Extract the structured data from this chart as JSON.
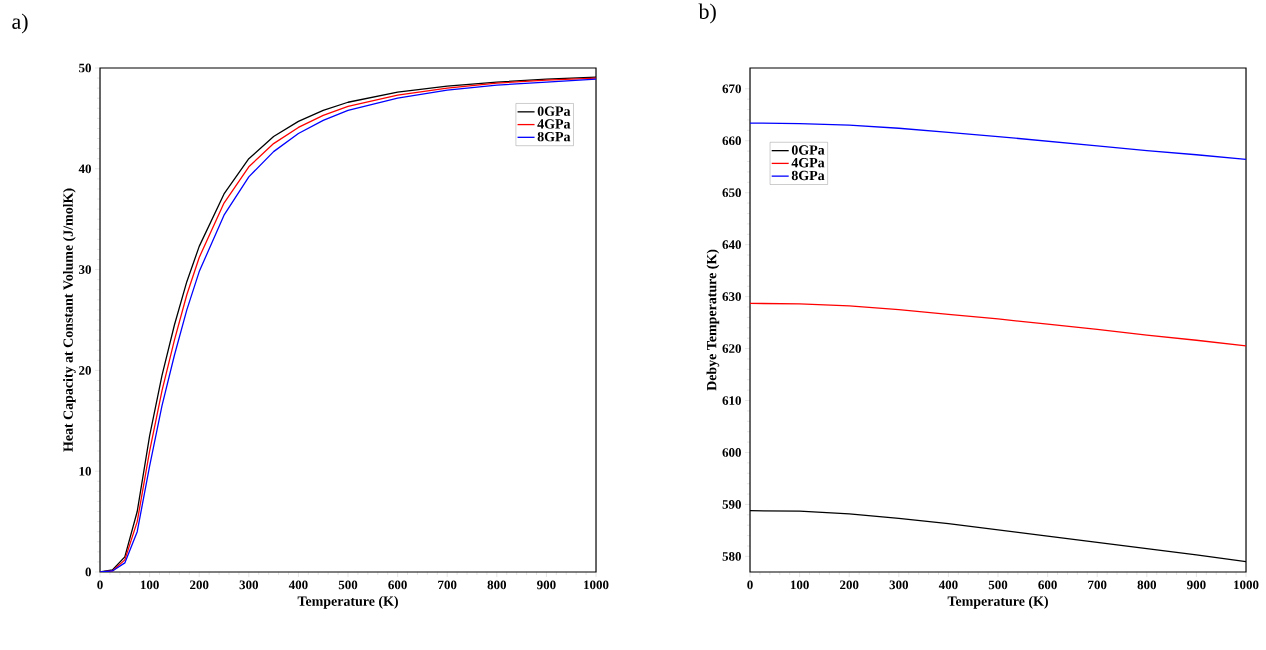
{
  "chart_data": [
    {
      "type": "line",
      "title": "a)",
      "xlabel": "Temperature (K)",
      "ylabel": "Heat Capacity at Constant Volume (J/molK)",
      "x": [
        0,
        25,
        50,
        75,
        100,
        125,
        150,
        175,
        200,
        250,
        300,
        350,
        400,
        450,
        500,
        600,
        700,
        800,
        900,
        1000
      ],
      "xlim": [
        0,
        1000
      ],
      "xticks": [
        0,
        100,
        200,
        300,
        400,
        500,
        600,
        700,
        800,
        900,
        1000
      ],
      "ylim": [
        0,
        50
      ],
      "yticks": [
        0,
        10,
        20,
        30,
        40,
        50
      ],
      "legend": "top right",
      "grid": false,
      "series": [
        {
          "name": "0GPa",
          "color": "#000000",
          "values": [
            0,
            0.2,
            1.5,
            6,
            13.5,
            19.5,
            24.5,
            28.8,
            32.3,
            37.5,
            41,
            43.2,
            44.7,
            45.8,
            46.6,
            47.6,
            48.2,
            48.6,
            48.9,
            49.1
          ]
        },
        {
          "name": "4GPa",
          "color": "#ff0000",
          "values": [
            0,
            0.1,
            1.2,
            5,
            12,
            18,
            23,
            27.5,
            31.2,
            36.6,
            40.2,
            42.5,
            44.1,
            45.3,
            46.2,
            47.3,
            48.0,
            48.5,
            48.8,
            49.0
          ]
        },
        {
          "name": "8GPa",
          "color": "#0000ff",
          "values": [
            0,
            0.1,
            0.9,
            4,
            10.5,
            16.5,
            21.5,
            26,
            29.8,
            35.4,
            39.2,
            41.7,
            43.5,
            44.8,
            45.8,
            47.0,
            47.8,
            48.3,
            48.6,
            48.9
          ]
        }
      ]
    },
    {
      "type": "line",
      "title": "b)",
      "xlabel": "Temperature (K)",
      "ylabel": "Debye Temperature (K)",
      "x": [
        0,
        100,
        200,
        300,
        400,
        500,
        600,
        700,
        800,
        900,
        1000
      ],
      "xlim": [
        0,
        1000
      ],
      "xticks": [
        0,
        100,
        200,
        300,
        400,
        500,
        600,
        700,
        800,
        900,
        1000
      ],
      "ylim": [
        577,
        674
      ],
      "yticks": [
        580,
        590,
        600,
        610,
        620,
        630,
        640,
        650,
        660,
        670
      ],
      "legend": "top left",
      "grid": false,
      "series": [
        {
          "name": "0GPa",
          "color": "#000000",
          "values": [
            588.8,
            588.7,
            588.2,
            587.3,
            586.3,
            585.1,
            583.9,
            582.7,
            581.5,
            580.3,
            579.0
          ]
        },
        {
          "name": "4GPa",
          "color": "#ff0000",
          "values": [
            628.7,
            628.6,
            628.2,
            627.5,
            626.6,
            625.7,
            624.7,
            623.7,
            622.6,
            621.6,
            620.5
          ]
        },
        {
          "name": "8GPa",
          "color": "#0000ff",
          "values": [
            663.4,
            663.3,
            663.0,
            662.4,
            661.6,
            660.8,
            659.9,
            659.0,
            658.1,
            657.3,
            656.4
          ]
        }
      ]
    }
  ]
}
